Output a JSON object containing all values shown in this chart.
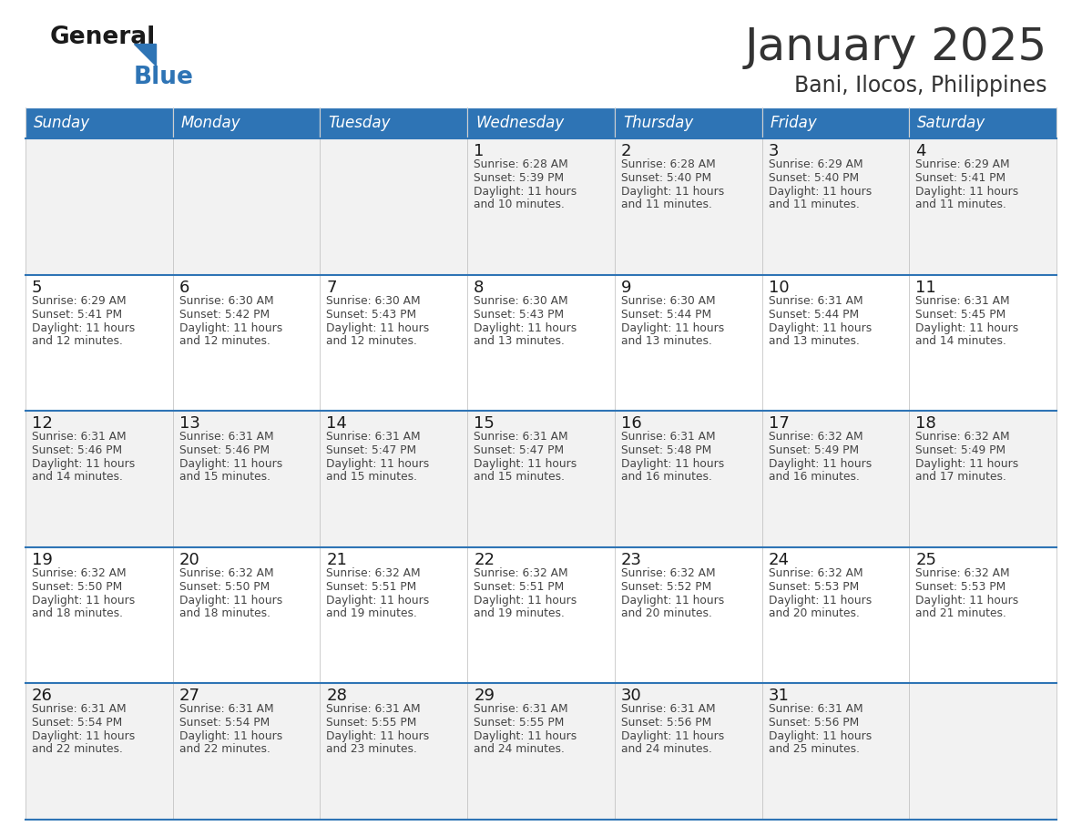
{
  "title": "January 2025",
  "subtitle": "Bani, Ilocos, Philippines",
  "days_of_week": [
    "Sunday",
    "Monday",
    "Tuesday",
    "Wednesday",
    "Thursday",
    "Friday",
    "Saturday"
  ],
  "header_bg": "#2E74B5",
  "header_text_color": "#FFFFFF",
  "row_bg_odd": "#F2F2F2",
  "row_bg_even": "#FFFFFF",
  "cell_text_color": "#444444",
  "border_color": "#2E74B5",
  "title_color": "#333333",
  "subtitle_color": "#333333",
  "calendar": [
    [
      {
        "day": "",
        "sunrise": "",
        "sunset": "",
        "daylight": ""
      },
      {
        "day": "",
        "sunrise": "",
        "sunset": "",
        "daylight": ""
      },
      {
        "day": "",
        "sunrise": "",
        "sunset": "",
        "daylight": ""
      },
      {
        "day": "1",
        "sunrise": "Sunrise: 6:28 AM",
        "sunset": "Sunset: 5:39 PM",
        "daylight": "Daylight: 11 hours\nand 10 minutes."
      },
      {
        "day": "2",
        "sunrise": "Sunrise: 6:28 AM",
        "sunset": "Sunset: 5:40 PM",
        "daylight": "Daylight: 11 hours\nand 11 minutes."
      },
      {
        "day": "3",
        "sunrise": "Sunrise: 6:29 AM",
        "sunset": "Sunset: 5:40 PM",
        "daylight": "Daylight: 11 hours\nand 11 minutes."
      },
      {
        "day": "4",
        "sunrise": "Sunrise: 6:29 AM",
        "sunset": "Sunset: 5:41 PM",
        "daylight": "Daylight: 11 hours\nand 11 minutes."
      }
    ],
    [
      {
        "day": "5",
        "sunrise": "Sunrise: 6:29 AM",
        "sunset": "Sunset: 5:41 PM",
        "daylight": "Daylight: 11 hours\nand 12 minutes."
      },
      {
        "day": "6",
        "sunrise": "Sunrise: 6:30 AM",
        "sunset": "Sunset: 5:42 PM",
        "daylight": "Daylight: 11 hours\nand 12 minutes."
      },
      {
        "day": "7",
        "sunrise": "Sunrise: 6:30 AM",
        "sunset": "Sunset: 5:43 PM",
        "daylight": "Daylight: 11 hours\nand 12 minutes."
      },
      {
        "day": "8",
        "sunrise": "Sunrise: 6:30 AM",
        "sunset": "Sunset: 5:43 PM",
        "daylight": "Daylight: 11 hours\nand 13 minutes."
      },
      {
        "day": "9",
        "sunrise": "Sunrise: 6:30 AM",
        "sunset": "Sunset: 5:44 PM",
        "daylight": "Daylight: 11 hours\nand 13 minutes."
      },
      {
        "day": "10",
        "sunrise": "Sunrise: 6:31 AM",
        "sunset": "Sunset: 5:44 PM",
        "daylight": "Daylight: 11 hours\nand 13 minutes."
      },
      {
        "day": "11",
        "sunrise": "Sunrise: 6:31 AM",
        "sunset": "Sunset: 5:45 PM",
        "daylight": "Daylight: 11 hours\nand 14 minutes."
      }
    ],
    [
      {
        "day": "12",
        "sunrise": "Sunrise: 6:31 AM",
        "sunset": "Sunset: 5:46 PM",
        "daylight": "Daylight: 11 hours\nand 14 minutes."
      },
      {
        "day": "13",
        "sunrise": "Sunrise: 6:31 AM",
        "sunset": "Sunset: 5:46 PM",
        "daylight": "Daylight: 11 hours\nand 15 minutes."
      },
      {
        "day": "14",
        "sunrise": "Sunrise: 6:31 AM",
        "sunset": "Sunset: 5:47 PM",
        "daylight": "Daylight: 11 hours\nand 15 minutes."
      },
      {
        "day": "15",
        "sunrise": "Sunrise: 6:31 AM",
        "sunset": "Sunset: 5:47 PM",
        "daylight": "Daylight: 11 hours\nand 15 minutes."
      },
      {
        "day": "16",
        "sunrise": "Sunrise: 6:31 AM",
        "sunset": "Sunset: 5:48 PM",
        "daylight": "Daylight: 11 hours\nand 16 minutes."
      },
      {
        "day": "17",
        "sunrise": "Sunrise: 6:32 AM",
        "sunset": "Sunset: 5:49 PM",
        "daylight": "Daylight: 11 hours\nand 16 minutes."
      },
      {
        "day": "18",
        "sunrise": "Sunrise: 6:32 AM",
        "sunset": "Sunset: 5:49 PM",
        "daylight": "Daylight: 11 hours\nand 17 minutes."
      }
    ],
    [
      {
        "day": "19",
        "sunrise": "Sunrise: 6:32 AM",
        "sunset": "Sunset: 5:50 PM",
        "daylight": "Daylight: 11 hours\nand 18 minutes."
      },
      {
        "day": "20",
        "sunrise": "Sunrise: 6:32 AM",
        "sunset": "Sunset: 5:50 PM",
        "daylight": "Daylight: 11 hours\nand 18 minutes."
      },
      {
        "day": "21",
        "sunrise": "Sunrise: 6:32 AM",
        "sunset": "Sunset: 5:51 PM",
        "daylight": "Daylight: 11 hours\nand 19 minutes."
      },
      {
        "day": "22",
        "sunrise": "Sunrise: 6:32 AM",
        "sunset": "Sunset: 5:51 PM",
        "daylight": "Daylight: 11 hours\nand 19 minutes."
      },
      {
        "day": "23",
        "sunrise": "Sunrise: 6:32 AM",
        "sunset": "Sunset: 5:52 PM",
        "daylight": "Daylight: 11 hours\nand 20 minutes."
      },
      {
        "day": "24",
        "sunrise": "Sunrise: 6:32 AM",
        "sunset": "Sunset: 5:53 PM",
        "daylight": "Daylight: 11 hours\nand 20 minutes."
      },
      {
        "day": "25",
        "sunrise": "Sunrise: 6:32 AM",
        "sunset": "Sunset: 5:53 PM",
        "daylight": "Daylight: 11 hours\nand 21 minutes."
      }
    ],
    [
      {
        "day": "26",
        "sunrise": "Sunrise: 6:31 AM",
        "sunset": "Sunset: 5:54 PM",
        "daylight": "Daylight: 11 hours\nand 22 minutes."
      },
      {
        "day": "27",
        "sunrise": "Sunrise: 6:31 AM",
        "sunset": "Sunset: 5:54 PM",
        "daylight": "Daylight: 11 hours\nand 22 minutes."
      },
      {
        "day": "28",
        "sunrise": "Sunrise: 6:31 AM",
        "sunset": "Sunset: 5:55 PM",
        "daylight": "Daylight: 11 hours\nand 23 minutes."
      },
      {
        "day": "29",
        "sunrise": "Sunrise: 6:31 AM",
        "sunset": "Sunset: 5:55 PM",
        "daylight": "Daylight: 11 hours\nand 24 minutes."
      },
      {
        "day": "30",
        "sunrise": "Sunrise: 6:31 AM",
        "sunset": "Sunset: 5:56 PM",
        "daylight": "Daylight: 11 hours\nand 24 minutes."
      },
      {
        "day": "31",
        "sunrise": "Sunrise: 6:31 AM",
        "sunset": "Sunset: 5:56 PM",
        "daylight": "Daylight: 11 hours\nand 25 minutes."
      },
      {
        "day": "",
        "sunrise": "",
        "sunset": "",
        "daylight": ""
      }
    ]
  ],
  "fig_width": 11.88,
  "fig_height": 9.18,
  "dpi": 100
}
